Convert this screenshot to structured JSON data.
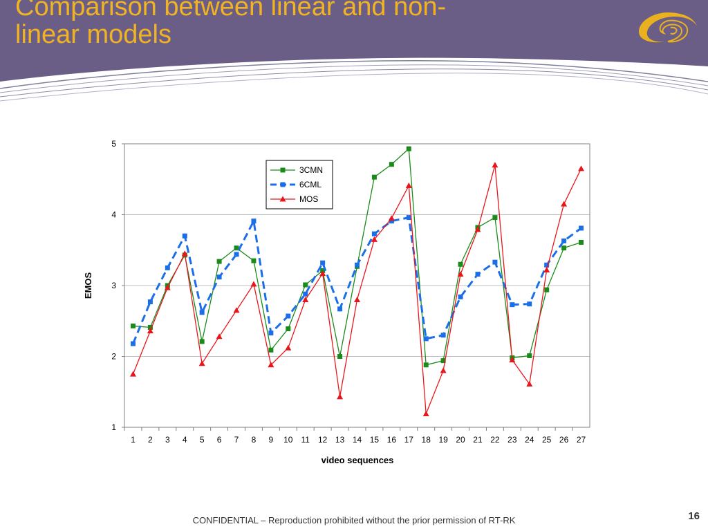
{
  "slide": {
    "title_line1": "Comparison between linear and non-",
    "title_line2": "linear models",
    "footer": "CONFIDENTIAL – Reproduction prohibited without the prior permission of RT-RK",
    "page_number": "16"
  },
  "colors": {
    "header_bg": "#6b5e86",
    "title": "#f0b323",
    "logo_gold": "#e9b020",
    "grid": "#bfbfbf"
  },
  "chart_data": {
    "type": "line",
    "xlabel": "video sequences",
    "ylabel": "EMOS",
    "ylim": [
      1,
      5
    ],
    "yticks": [
      1,
      2,
      3,
      4,
      5
    ],
    "categories": [
      "1",
      "2",
      "3",
      "4",
      "5",
      "6",
      "7",
      "8",
      "9",
      "10",
      "11",
      "12",
      "13",
      "14",
      "15",
      "16",
      "17",
      "18",
      "19",
      "20",
      "21",
      "22",
      "23",
      "24",
      "25",
      "26",
      "27"
    ],
    "grid": "horizontal",
    "legend_position": "top-left",
    "series": [
      {
        "name": "3CMN",
        "color": "#1a8a1a",
        "marker": "square",
        "dash": "solid",
        "values": [
          2.43,
          2.41,
          3.0,
          3.43,
          2.21,
          3.34,
          3.53,
          3.35,
          2.09,
          2.39,
          3.01,
          3.21,
          2.0,
          3.27,
          4.53,
          4.71,
          4.93,
          1.88,
          1.94,
          3.3,
          3.82,
          3.96,
          1.98,
          2.01,
          2.94,
          3.53,
          3.61
        ]
      },
      {
        "name": "6CML",
        "color": "#1c6ee8",
        "marker": "square",
        "dash": "dashed",
        "values": [
          2.18,
          2.77,
          3.25,
          3.7,
          2.62,
          3.12,
          3.44,
          3.91,
          2.33,
          2.57,
          2.88,
          3.32,
          2.67,
          3.29,
          3.73,
          3.91,
          3.96,
          2.25,
          2.3,
          2.84,
          3.16,
          3.33,
          2.73,
          2.74,
          3.29,
          3.63,
          3.81
        ]
      },
      {
        "name": "MOS",
        "color": "#e8161b",
        "marker": "triangle",
        "dash": "solid",
        "values": [
          1.75,
          2.36,
          2.97,
          3.45,
          1.9,
          2.28,
          2.65,
          3.02,
          1.88,
          2.12,
          2.8,
          3.17,
          1.43,
          2.8,
          3.65,
          3.95,
          4.41,
          1.19,
          1.8,
          3.16,
          3.79,
          4.7,
          1.95,
          1.61,
          3.22,
          4.15,
          4.65
        ]
      }
    ]
  }
}
